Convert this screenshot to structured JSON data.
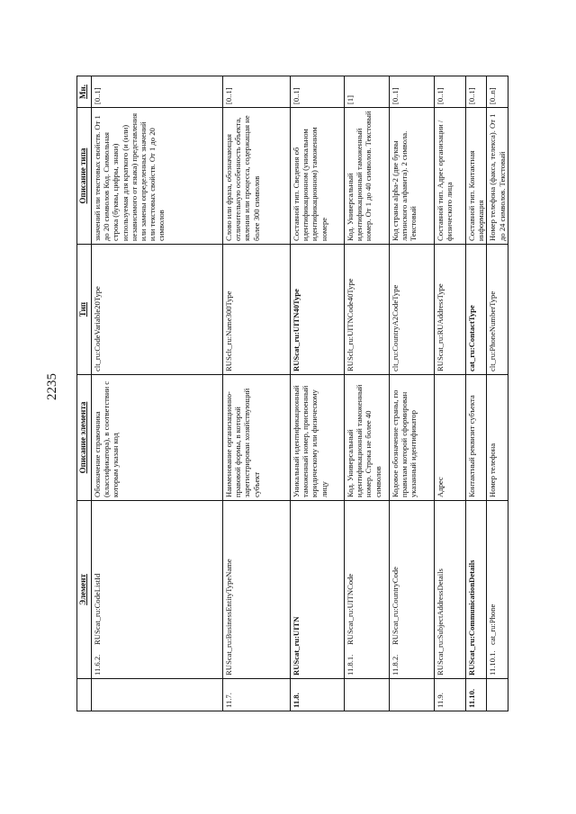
{
  "page_number": "2235",
  "table": {
    "headers": [
      "",
      "Элемент",
      "Описание элемента",
      "Тип",
      "Описание типа",
      "Мн."
    ],
    "rows": [
      {
        "num": "11.6.2.",
        "sub": true,
        "bold": false,
        "element": "RUScat_ru:CodeListId",
        "element_desc": "Обозначение справочника (классификатора), в соответствии с которым указан код",
        "type": "clt_ru:CodeVariable20Type",
        "type_desc": "значений или текстовых свойств. От 1 до 20 символов Код. Символьная строка (буквы, цифры, знаки) используемая для краткого (и (или) независимого от языка) представления или замены определенных значений или текстовых свойств. От 1 до 20 символов",
        "mult": "[0..1]"
      },
      {
        "num": "11.7.",
        "sub": false,
        "bold": false,
        "element": "RUScat_ru:BusinessEntityTypeName",
        "element_desc": "Наименование организационно-правовой формы, в которой зарегистрирован хозяйствующий субъект",
        "type": "RUSclt_ru:Name300Type",
        "type_desc": "Слово или фраза, обозначающая отличительную особенность объекта, явления или процесса, содержащая не более 300 символов",
        "mult": "[0..1]"
      },
      {
        "num": "11.8.",
        "sub": false,
        "bold": true,
        "element": "RUScat_ru:UITN",
        "element_desc": "Уникальный идентификационный таможенный номер, присвоенный юридическому или физическому лицу",
        "type": "RUScat_ru:UITN40Type",
        "type_desc": "Составной тип. Сведения об идентификационном (уникальном идентификационном) таможенном номере",
        "mult": "[0..1]"
      },
      {
        "num": "11.8.1.",
        "sub": true,
        "bold": false,
        "element": "RUScat_ru:UITNCode",
        "element_desc": "Код. Универсальный идентификационный таможенный номер. Строка не более 40 символов",
        "type": "RUSclt_ru:UITNCode40Type",
        "type_desc": "Код. Универсальный идентификационный таможенный номер. От 1 до 40 символов. Текстовый",
        "mult": "[1]"
      },
      {
        "num": "11.8.2.",
        "sub": true,
        "bold": false,
        "element": "RUScat_ru:CountryCode",
        "element_desc": "Кодовое обозначение страны, по правилам которой сформирован указанный идентификатор",
        "type": "clt_ru:CountryA2CodeType",
        "type_desc": "Код страны alpha-2 (две буквы латинского алфавита). 2 символа. Текстовый",
        "mult": "[0..1]"
      },
      {
        "num": "11.9.",
        "sub": false,
        "bold": false,
        "element": "RUScat_ru:SubjectAddressDetails",
        "element_desc": "Адрес",
        "type": "RUScat_ru:RUAddressType",
        "type_desc": "Составной тип. Адрес организации / физического лица",
        "mult": "[0..1]"
      },
      {
        "num": "11.10.",
        "sub": false,
        "bold": true,
        "element": "RUScat_ru:CommunicationDetails",
        "element_desc": "Контактный реквизит субъекта",
        "type": "cat_ru:ContactType",
        "type_desc": "Составной тип. Контактная информация",
        "mult": "[0..1]"
      },
      {
        "num": "11.10.1.",
        "sub": true,
        "bold": false,
        "element": "cat_ru:Phone",
        "element_desc": "Номер телефона",
        "type": "clt_ru:PhoneNumberType",
        "type_desc": "Номер телефона (факса, телекса). От 1 до 24 символов. Текстовый",
        "mult": "[0..n]"
      }
    ]
  }
}
